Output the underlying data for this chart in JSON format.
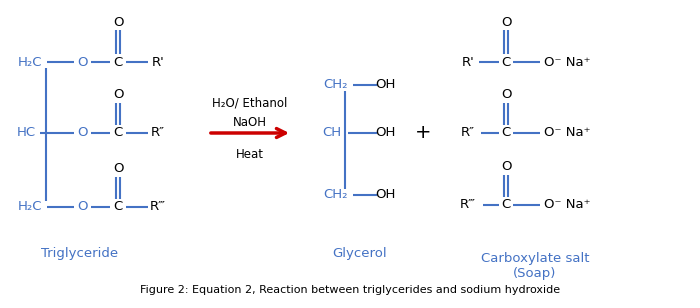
{
  "figsize": [
    7.0,
    3.08
  ],
  "dpi": 100,
  "bg_color": "#ffffff",
  "bond_color": "#4472c4",
  "arrow_color": "#cc0000",
  "text_color": "#000000",
  "label_color": "#4472c4",
  "figure_caption": "Figure 2: Equation 2, Reaction between triglycerides and sodium hydroxide",
  "triglyceride_label": "Triglyceride",
  "glycerol_label": "Glycerol",
  "carboxylate_label": "Carboxylate salt\n(Soap)",
  "font_size_main": 9.5,
  "font_size_caption": 8,
  "font_size_label": 9.5
}
